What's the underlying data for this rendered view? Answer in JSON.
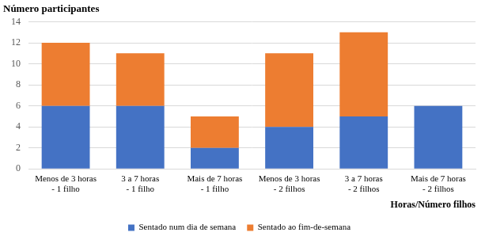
{
  "chart_data": {
    "type": "bar",
    "stacked": true,
    "ylabel": "Número participantes",
    "xlabel": "Horas/Número filhos",
    "categories": [
      "Menos de 3 horas - 1 filho",
      "3 a 7 horas - 1 filho",
      "Mais de 7 horas - 1 filho",
      "Menos de 3 horas - 2 filhos",
      "3 a 7 horas - 2 filhos",
      "Mais de 7 horas - 2 filhos"
    ],
    "series": [
      {
        "name": "Sentado num dia de semana",
        "color": "#4472c4",
        "values": [
          6,
          6,
          2,
          4,
          5,
          6
        ]
      },
      {
        "name": "Sentado ao fim-de-semana",
        "color": "#ed7d31",
        "values": [
          6,
          5,
          3,
          7,
          8,
          0
        ]
      }
    ],
    "ylim": [
      0,
      14
    ],
    "yticks": [
      0,
      2,
      4,
      6,
      8,
      10,
      12,
      14
    ],
    "grid": true,
    "legend": "bottom"
  }
}
